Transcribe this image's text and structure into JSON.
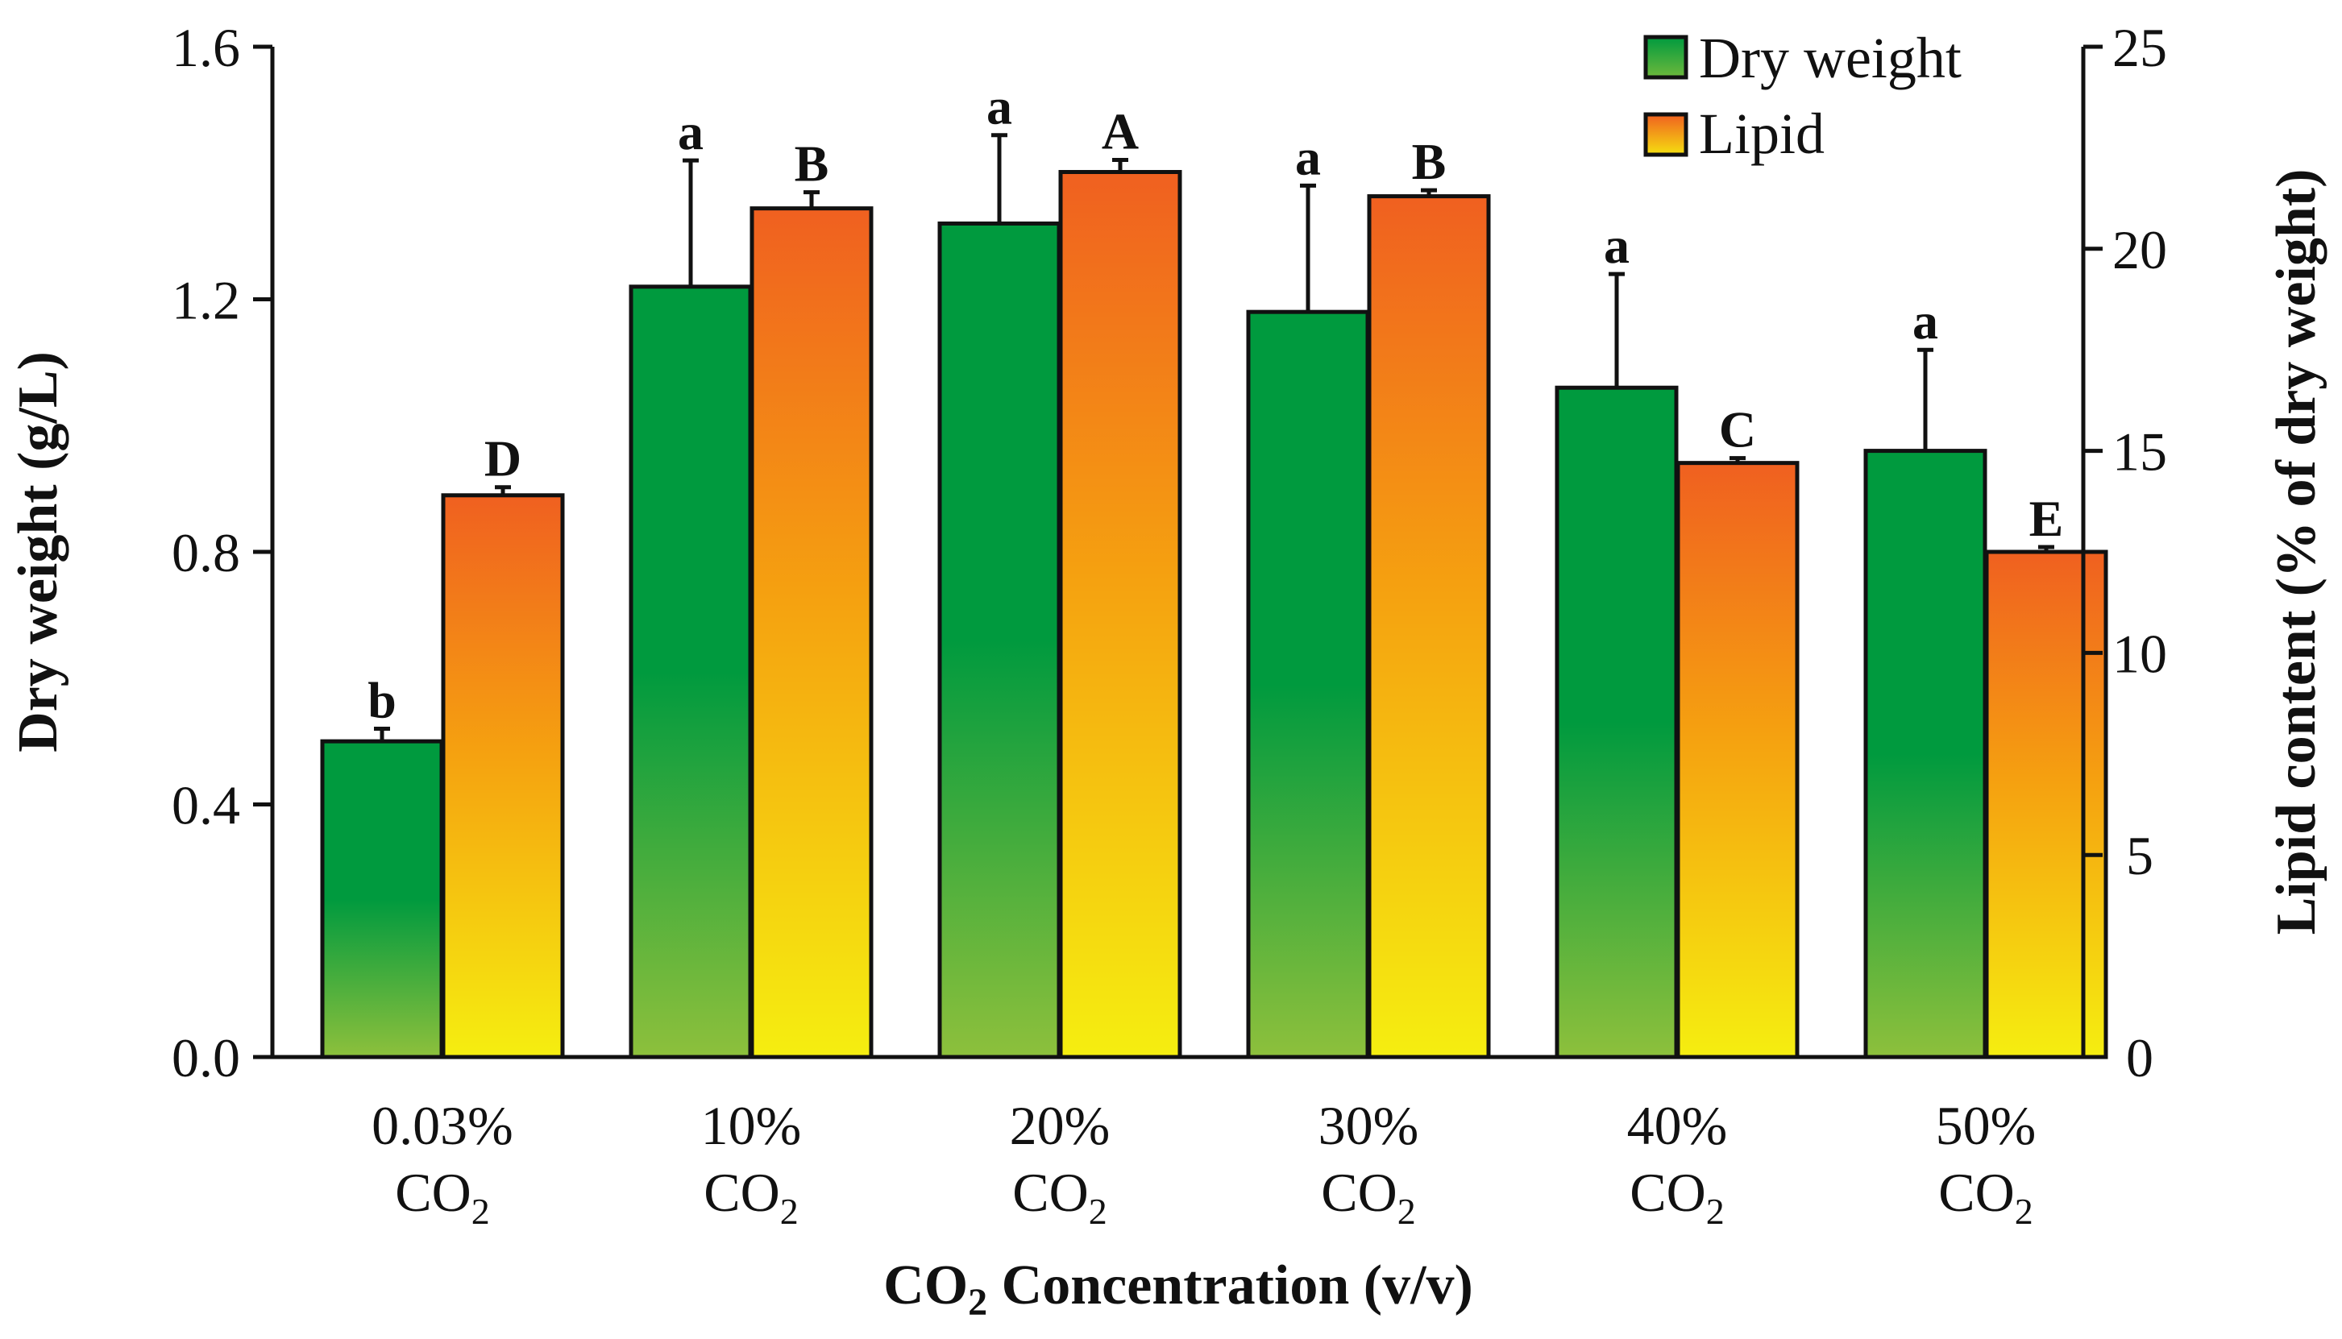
{
  "chart_data": {
    "type": "bar",
    "title": "",
    "categories": [
      {
        "line1": "0.03%",
        "co": "CO",
        "sub": "2"
      },
      {
        "line1": "10%",
        "co": "CO",
        "sub": "2"
      },
      {
        "line1": "20%",
        "co": "CO",
        "sub": "2"
      },
      {
        "line1": "30%",
        "co": "CO",
        "sub": "2"
      },
      {
        "line1": "40%",
        "co": "CO",
        "sub": "2"
      },
      {
        "line1": "50%",
        "co": "CO",
        "sub": "2"
      }
    ],
    "xlabel": {
      "pre": "CO",
      "sub": "2",
      "post": " Concentration (v/v)"
    },
    "ylabel_left": "Dry weight (g/L)",
    "ylabel_right": "Lipid content (% of dry weight)",
    "ylim_left": [
      0,
      1.6
    ],
    "ylim_right": [
      0,
      25
    ],
    "yticks_left": [
      "0.0",
      "0.4",
      "0.8",
      "1.2",
      "1.6"
    ],
    "yticks_right": [
      "0",
      "5",
      "10",
      "15",
      "20",
      "25"
    ],
    "series": [
      {
        "name": "Dry weight",
        "axis": "left",
        "values": [
          0.5,
          1.22,
          1.32,
          1.18,
          1.06,
          0.96
        ],
        "errors": [
          0.02,
          0.2,
          0.14,
          0.2,
          0.18,
          0.16
        ],
        "labels": [
          "b",
          "a",
          "a",
          "a",
          "a",
          "a"
        ],
        "colors": {
          "top": "#009a3e",
          "bottom": "#8dc03c"
        }
      },
      {
        "name": "Lipid",
        "axis": "right",
        "values": [
          13.9,
          21.0,
          21.9,
          21.3,
          14.7,
          12.5
        ],
        "errors": [
          0.2,
          0.4,
          0.3,
          0.15,
          0.12,
          0.12
        ],
        "labels": [
          "D",
          "B",
          "A",
          "B",
          "C",
          "E"
        ],
        "colors": {
          "top": "#f06020",
          "mid": "#f5a010",
          "bottom": "#f5ee10"
        }
      }
    ],
    "legend": {
      "position": "top-right",
      "items": [
        "Dry weight",
        "Lipid"
      ]
    },
    "grid": false
  }
}
